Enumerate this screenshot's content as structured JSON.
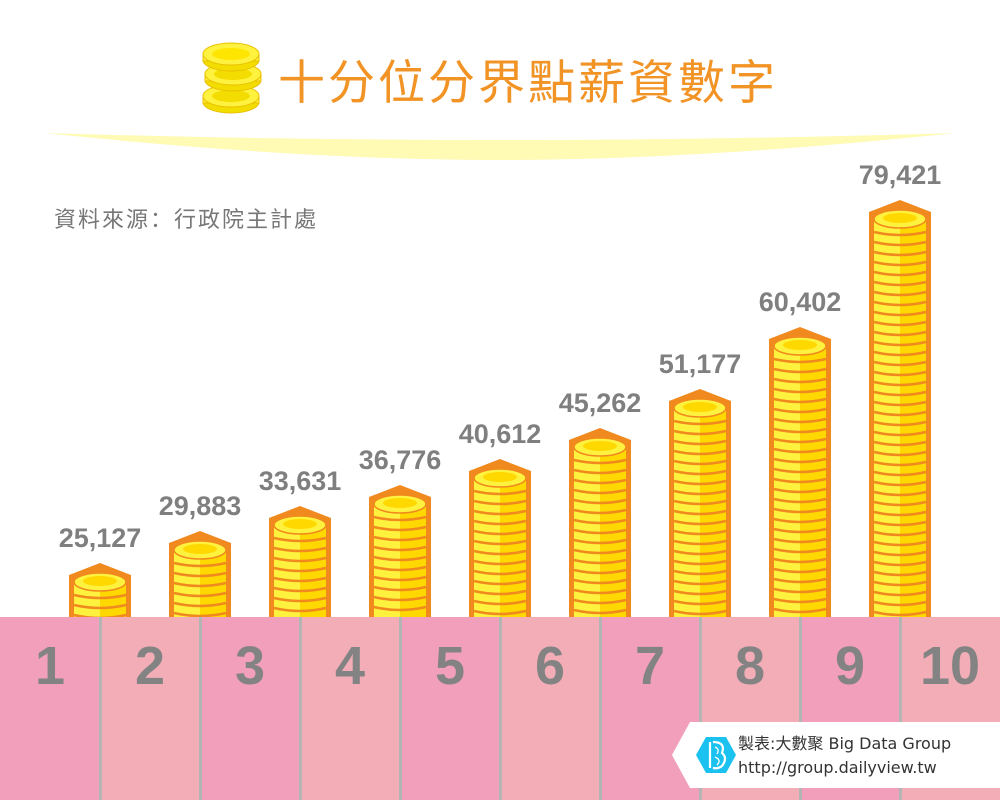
{
  "header": {
    "title": "十分位分界點薪資數字",
    "title_icon": "coin-stack-icon",
    "source": "資料來源：行政院主計處"
  },
  "colors": {
    "title": "#f29325",
    "coin_outline": "#f0891e",
    "coin_light": "#fff23e",
    "coin_dark": "#ffd800",
    "column_pink_a": "#f29fbb",
    "column_pink_b": "#f2adb7",
    "divider": "#b4b4b4",
    "label_gray": "#7f7f7f",
    "swoosh": "#fffab4"
  },
  "columns": [
    {
      "num": "1",
      "label": "25,127"
    },
    {
      "num": "2",
      "label": "29,883"
    },
    {
      "num": "3",
      "label": "33,631"
    },
    {
      "num": "4",
      "label": "36,776"
    },
    {
      "num": "5",
      "label": "40,612"
    },
    {
      "num": "6",
      "label": "45,262"
    },
    {
      "num": "7",
      "label": "51,177"
    },
    {
      "num": "8",
      "label": "60,402"
    },
    {
      "num": "9",
      "label": "79,421"
    },
    {
      "num": "10",
      "label": ""
    }
  ],
  "credit": {
    "line1": "製表:大數聚 Big Data Group",
    "line2": "http://group.dailyview.tw",
    "logo": "big-data-group-logo-icon"
  },
  "chart_data": {
    "type": "bar",
    "title": "十分位分界點薪資數字",
    "subtitle": "資料來源：行政院主計處",
    "categories": [
      "1",
      "2",
      "3",
      "4",
      "5",
      "6",
      "7",
      "8",
      "9"
    ],
    "values": [
      25127,
      29883,
      33631,
      36776,
      40612,
      45262,
      51177,
      60402,
      79421
    ],
    "value_labels": [
      "25,127",
      "29,883",
      "33,631",
      "36,776",
      "40,612",
      "45,262",
      "51,177",
      "60,402",
      "79,421"
    ],
    "x_axis_ticks": [
      "1",
      "2",
      "3",
      "4",
      "5",
      "6",
      "7",
      "8",
      "9",
      "10"
    ],
    "xlabel": "",
    "ylabel": "",
    "grid": false,
    "legend": null,
    "bar_style": "coin stacks"
  }
}
